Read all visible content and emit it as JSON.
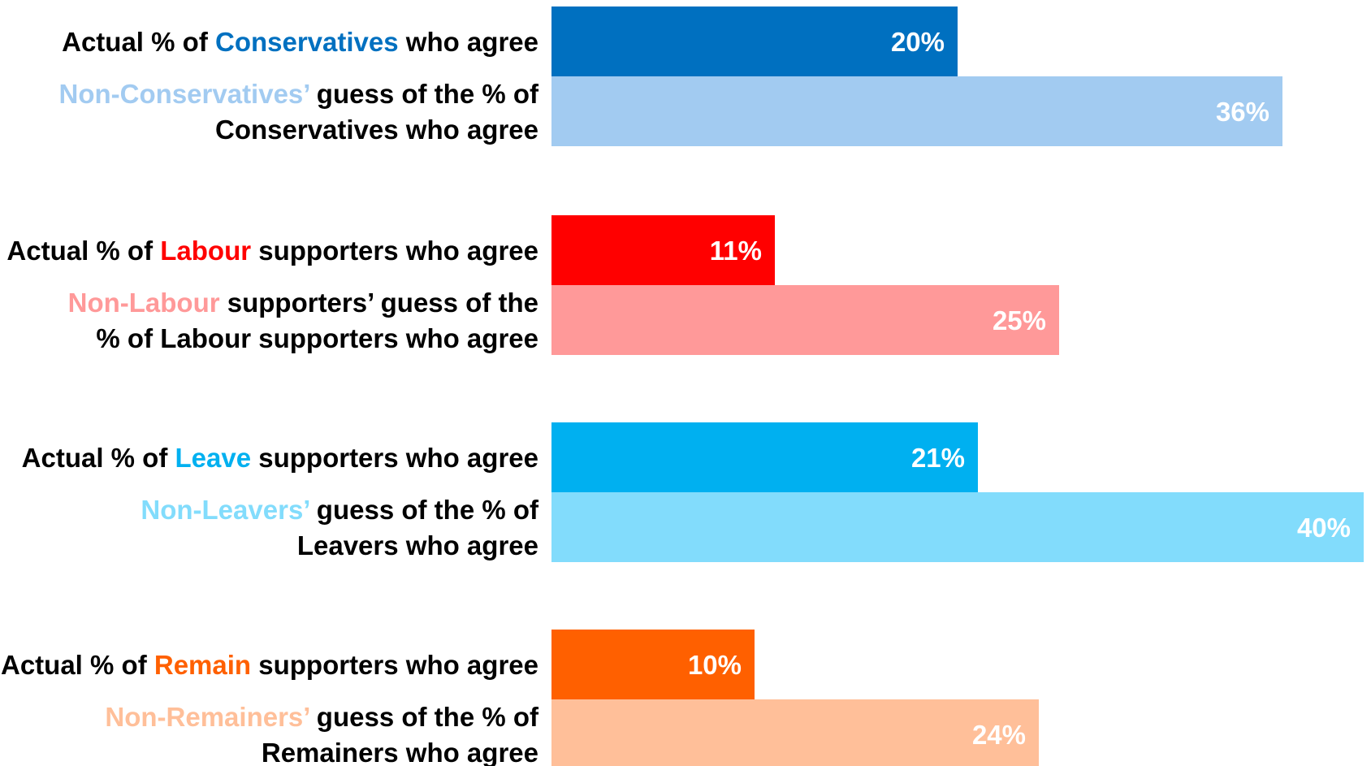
{
  "chart_data": {
    "type": "bar",
    "orientation": "horizontal",
    "xlim": [
      0,
      40
    ],
    "grid": false,
    "groups": [
      {
        "bars": [
          {
            "value": 20,
            "value_label": "20%",
            "color": "#0070c0",
            "label_lines": [
              [
                {
                  "text": "Actual % of ",
                  "color": "#000000"
                },
                {
                  "text": "Conservatives",
                  "color": "#0070c0"
                },
                {
                  "text": " who agree",
                  "color": "#000000"
                }
              ]
            ]
          },
          {
            "value": 36,
            "value_label": "36%",
            "color": "#a2cbf1",
            "label_lines": [
              [
                {
                  "text": "Non-Conservatives’",
                  "color": "#a2cbf1"
                },
                {
                  "text": " guess of the % of",
                  "color": "#000000"
                }
              ],
              [
                {
                  "text": "Conservatives who agree",
                  "color": "#000000"
                }
              ]
            ]
          }
        ]
      },
      {
        "bars": [
          {
            "value": 11,
            "value_label": "11%",
            "color": "#ff0000",
            "label_lines": [
              [
                {
                  "text": "Actual % of ",
                  "color": "#000000"
                },
                {
                  "text": "Labour",
                  "color": "#ff0000"
                },
                {
                  "text": " supporters who agree",
                  "color": "#000000"
                }
              ]
            ]
          },
          {
            "value": 25,
            "value_label": "25%",
            "color": "#ff9999",
            "label_lines": [
              [
                {
                  "text": "Non-Labour",
                  "color": "#ff9999"
                },
                {
                  "text": " supporters’ guess of the",
                  "color": "#000000"
                }
              ],
              [
                {
                  "text": "% of Labour supporters who agree",
                  "color": "#000000"
                }
              ]
            ]
          }
        ]
      },
      {
        "bars": [
          {
            "value": 21,
            "value_label": "21%",
            "color": "#00b0f0",
            "label_lines": [
              [
                {
                  "text": "Actual % of ",
                  "color": "#000000"
                },
                {
                  "text": "Leave",
                  "color": "#00b0f0"
                },
                {
                  "text": " supporters who agree",
                  "color": "#000000"
                }
              ]
            ]
          },
          {
            "value": 40,
            "value_label": "40%",
            "color": "#82dcfc",
            "label_lines": [
              [
                {
                  "text": "Non-Leavers’",
                  "color": "#82dcfc"
                },
                {
                  "text": " guess of the % of",
                  "color": "#000000"
                }
              ],
              [
                {
                  "text": "Leavers who agree",
                  "color": "#000000"
                }
              ]
            ]
          }
        ]
      },
      {
        "bars": [
          {
            "value": 10,
            "value_label": "10%",
            "color": "#ff6000",
            "label_lines": [
              [
                {
                  "text": "Actual % of ",
                  "color": "#000000"
                },
                {
                  "text": "Remain",
                  "color": "#ff6000"
                },
                {
                  "text": " supporters who agree",
                  "color": "#000000"
                }
              ]
            ]
          },
          {
            "value": 24,
            "value_label": "24%",
            "color": "#ffbf99",
            "label_lines": [
              [
                {
                  "text": "Non-Remainers’",
                  "color": "#ffbf99"
                },
                {
                  "text": " guess of the % of",
                  "color": "#000000"
                }
              ],
              [
                {
                  "text": "Remainers who agree",
                  "color": "#000000"
                }
              ]
            ]
          }
        ]
      }
    ]
  }
}
